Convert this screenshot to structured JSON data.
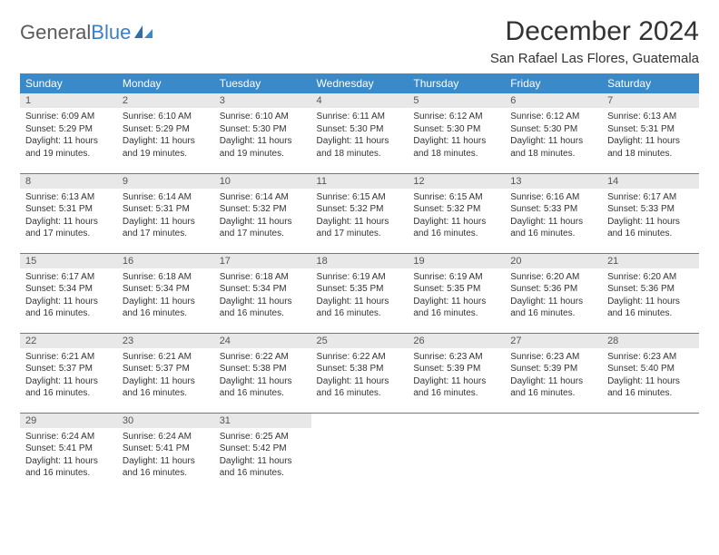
{
  "logo": {
    "part1": "General",
    "part2": "Blue"
  },
  "title": "December 2024",
  "location": "San Rafael Las Flores, Guatemala",
  "colors": {
    "header_bg": "#3a89c9",
    "header_fg": "#ffffff",
    "daynum_bg": "#e8e8e8",
    "row_border": "#3a89c9",
    "logo_accent": "#3a7fc4",
    "logo_gray": "#5a5a5a"
  },
  "weekdays": [
    "Sunday",
    "Monday",
    "Tuesday",
    "Wednesday",
    "Thursday",
    "Friday",
    "Saturday"
  ],
  "days": [
    {
      "n": "1",
      "sr": "Sunrise: 6:09 AM",
      "ss": "Sunset: 5:29 PM",
      "d1": "Daylight: 11 hours",
      "d2": "and 19 minutes."
    },
    {
      "n": "2",
      "sr": "Sunrise: 6:10 AM",
      "ss": "Sunset: 5:29 PM",
      "d1": "Daylight: 11 hours",
      "d2": "and 19 minutes."
    },
    {
      "n": "3",
      "sr": "Sunrise: 6:10 AM",
      "ss": "Sunset: 5:30 PM",
      "d1": "Daylight: 11 hours",
      "d2": "and 19 minutes."
    },
    {
      "n": "4",
      "sr": "Sunrise: 6:11 AM",
      "ss": "Sunset: 5:30 PM",
      "d1": "Daylight: 11 hours",
      "d2": "and 18 minutes."
    },
    {
      "n": "5",
      "sr": "Sunrise: 6:12 AM",
      "ss": "Sunset: 5:30 PM",
      "d1": "Daylight: 11 hours",
      "d2": "and 18 minutes."
    },
    {
      "n": "6",
      "sr": "Sunrise: 6:12 AM",
      "ss": "Sunset: 5:30 PM",
      "d1": "Daylight: 11 hours",
      "d2": "and 18 minutes."
    },
    {
      "n": "7",
      "sr": "Sunrise: 6:13 AM",
      "ss": "Sunset: 5:31 PM",
      "d1": "Daylight: 11 hours",
      "d2": "and 18 minutes."
    },
    {
      "n": "8",
      "sr": "Sunrise: 6:13 AM",
      "ss": "Sunset: 5:31 PM",
      "d1": "Daylight: 11 hours",
      "d2": "and 17 minutes."
    },
    {
      "n": "9",
      "sr": "Sunrise: 6:14 AM",
      "ss": "Sunset: 5:31 PM",
      "d1": "Daylight: 11 hours",
      "d2": "and 17 minutes."
    },
    {
      "n": "10",
      "sr": "Sunrise: 6:14 AM",
      "ss": "Sunset: 5:32 PM",
      "d1": "Daylight: 11 hours",
      "d2": "and 17 minutes."
    },
    {
      "n": "11",
      "sr": "Sunrise: 6:15 AM",
      "ss": "Sunset: 5:32 PM",
      "d1": "Daylight: 11 hours",
      "d2": "and 17 minutes."
    },
    {
      "n": "12",
      "sr": "Sunrise: 6:15 AM",
      "ss": "Sunset: 5:32 PM",
      "d1": "Daylight: 11 hours",
      "d2": "and 16 minutes."
    },
    {
      "n": "13",
      "sr": "Sunrise: 6:16 AM",
      "ss": "Sunset: 5:33 PM",
      "d1": "Daylight: 11 hours",
      "d2": "and 16 minutes."
    },
    {
      "n": "14",
      "sr": "Sunrise: 6:17 AM",
      "ss": "Sunset: 5:33 PM",
      "d1": "Daylight: 11 hours",
      "d2": "and 16 minutes."
    },
    {
      "n": "15",
      "sr": "Sunrise: 6:17 AM",
      "ss": "Sunset: 5:34 PM",
      "d1": "Daylight: 11 hours",
      "d2": "and 16 minutes."
    },
    {
      "n": "16",
      "sr": "Sunrise: 6:18 AM",
      "ss": "Sunset: 5:34 PM",
      "d1": "Daylight: 11 hours",
      "d2": "and 16 minutes."
    },
    {
      "n": "17",
      "sr": "Sunrise: 6:18 AM",
      "ss": "Sunset: 5:34 PM",
      "d1": "Daylight: 11 hours",
      "d2": "and 16 minutes."
    },
    {
      "n": "18",
      "sr": "Sunrise: 6:19 AM",
      "ss": "Sunset: 5:35 PM",
      "d1": "Daylight: 11 hours",
      "d2": "and 16 minutes."
    },
    {
      "n": "19",
      "sr": "Sunrise: 6:19 AM",
      "ss": "Sunset: 5:35 PM",
      "d1": "Daylight: 11 hours",
      "d2": "and 16 minutes."
    },
    {
      "n": "20",
      "sr": "Sunrise: 6:20 AM",
      "ss": "Sunset: 5:36 PM",
      "d1": "Daylight: 11 hours",
      "d2": "and 16 minutes."
    },
    {
      "n": "21",
      "sr": "Sunrise: 6:20 AM",
      "ss": "Sunset: 5:36 PM",
      "d1": "Daylight: 11 hours",
      "d2": "and 16 minutes."
    },
    {
      "n": "22",
      "sr": "Sunrise: 6:21 AM",
      "ss": "Sunset: 5:37 PM",
      "d1": "Daylight: 11 hours",
      "d2": "and 16 minutes."
    },
    {
      "n": "23",
      "sr": "Sunrise: 6:21 AM",
      "ss": "Sunset: 5:37 PM",
      "d1": "Daylight: 11 hours",
      "d2": "and 16 minutes."
    },
    {
      "n": "24",
      "sr": "Sunrise: 6:22 AM",
      "ss": "Sunset: 5:38 PM",
      "d1": "Daylight: 11 hours",
      "d2": "and 16 minutes."
    },
    {
      "n": "25",
      "sr": "Sunrise: 6:22 AM",
      "ss": "Sunset: 5:38 PM",
      "d1": "Daylight: 11 hours",
      "d2": "and 16 minutes."
    },
    {
      "n": "26",
      "sr": "Sunrise: 6:23 AM",
      "ss": "Sunset: 5:39 PM",
      "d1": "Daylight: 11 hours",
      "d2": "and 16 minutes."
    },
    {
      "n": "27",
      "sr": "Sunrise: 6:23 AM",
      "ss": "Sunset: 5:39 PM",
      "d1": "Daylight: 11 hours",
      "d2": "and 16 minutes."
    },
    {
      "n": "28",
      "sr": "Sunrise: 6:23 AM",
      "ss": "Sunset: 5:40 PM",
      "d1": "Daylight: 11 hours",
      "d2": "and 16 minutes."
    },
    {
      "n": "29",
      "sr": "Sunrise: 6:24 AM",
      "ss": "Sunset: 5:41 PM",
      "d1": "Daylight: 11 hours",
      "d2": "and 16 minutes."
    },
    {
      "n": "30",
      "sr": "Sunrise: 6:24 AM",
      "ss": "Sunset: 5:41 PM",
      "d1": "Daylight: 11 hours",
      "d2": "and 16 minutes."
    },
    {
      "n": "31",
      "sr": "Sunrise: 6:25 AM",
      "ss": "Sunset: 5:42 PM",
      "d1": "Daylight: 11 hours",
      "d2": "and 16 minutes."
    }
  ]
}
